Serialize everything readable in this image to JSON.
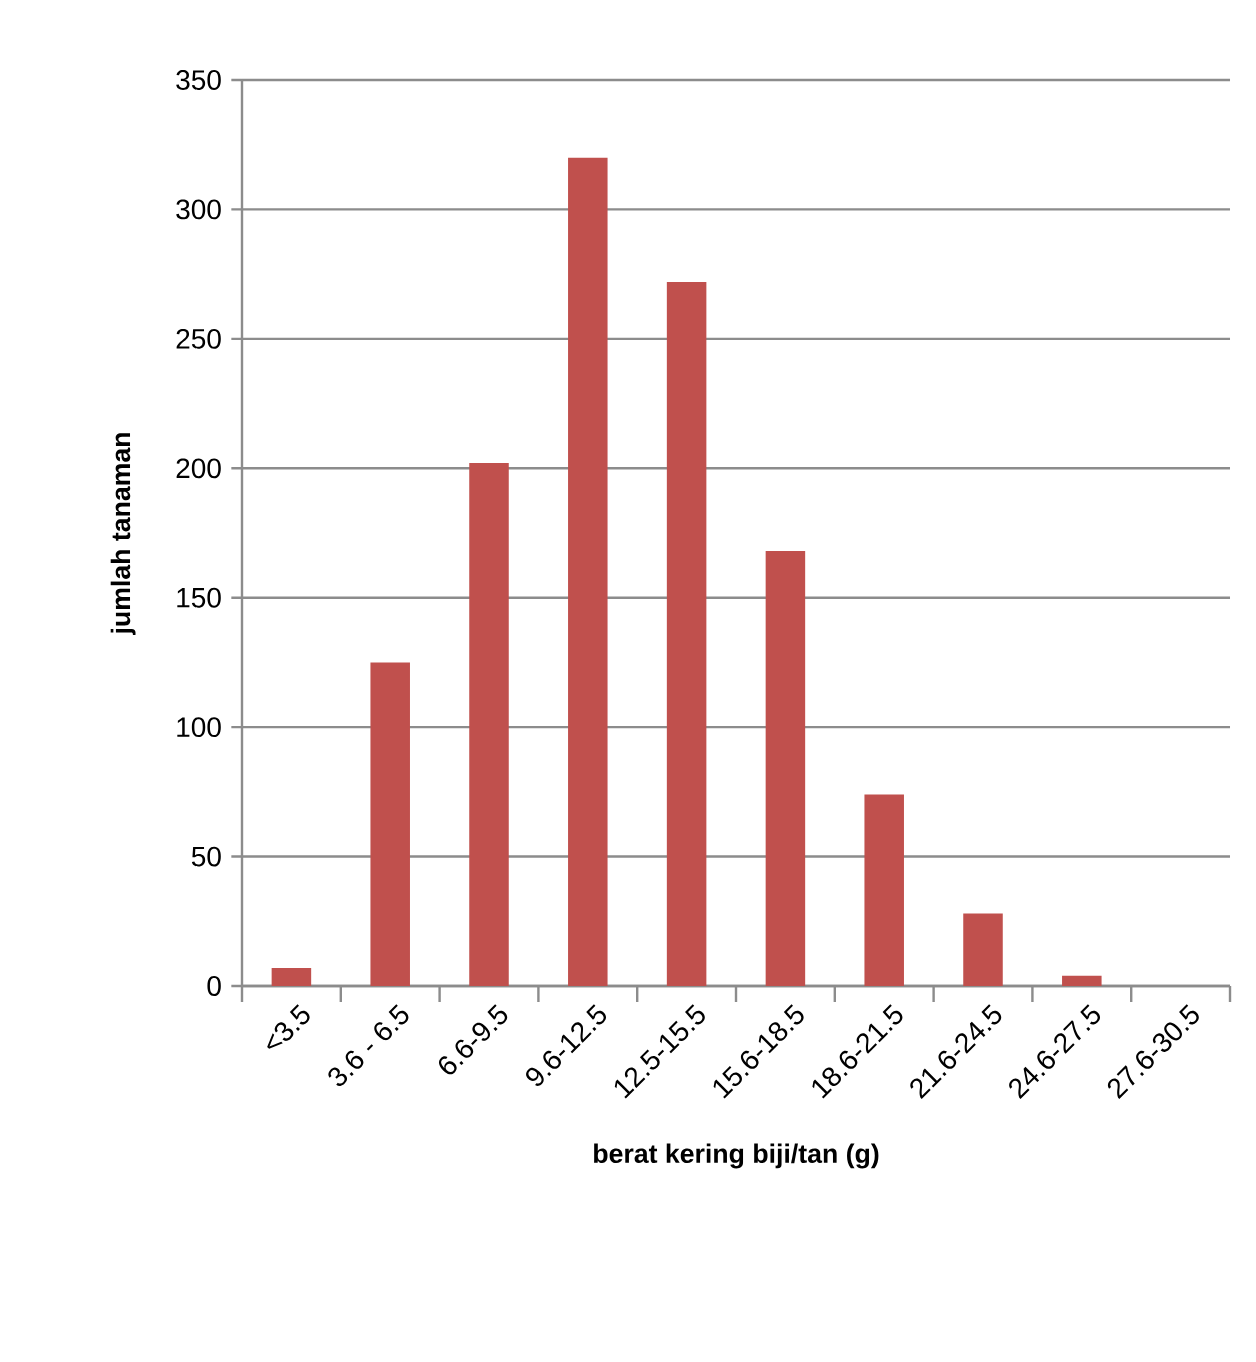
{
  "chart_data": {
    "type": "bar",
    "xlabel": "berat kering biji/tan  (g)",
    "ylabel": "jumlah tanaman",
    "categories": [
      "<3.5",
      "3.6 - 6.5",
      "6.6-9.5",
      "9.6-12.5",
      "12.5-15.5",
      "15.6-18.5",
      "18.6-21.5",
      "21.6-24.5",
      "24.6-27.5",
      "27.6-30.5"
    ],
    "values": [
      7,
      125,
      202,
      320,
      272,
      168,
      74,
      28,
      4,
      0
    ],
    "color": "#c0504d",
    "ylim": [
      0,
      350
    ],
    "yticks": [
      0,
      50,
      100,
      150,
      200,
      250,
      300,
      350
    ],
    "grid": "y"
  }
}
